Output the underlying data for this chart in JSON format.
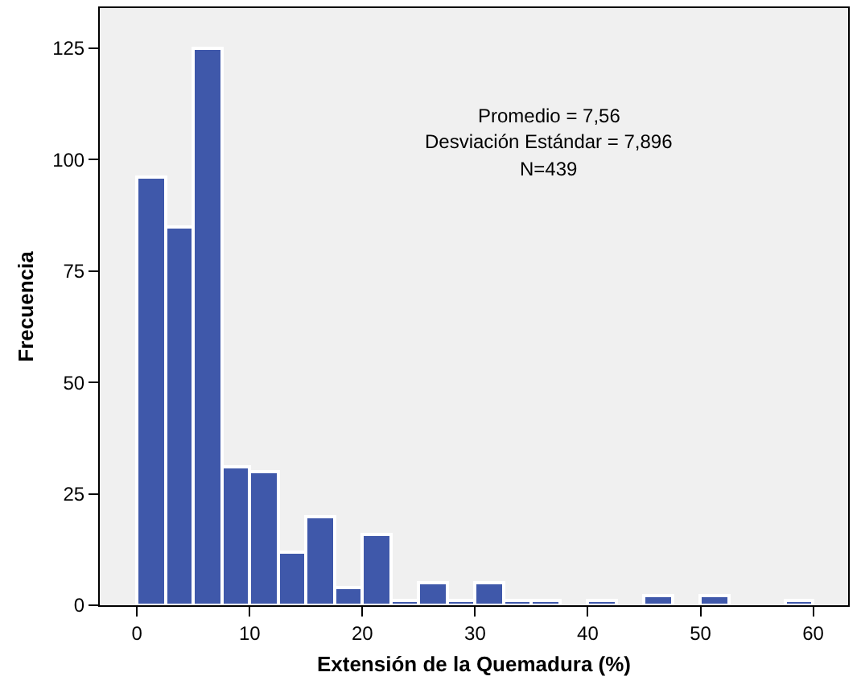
{
  "chart_data": {
    "type": "histogram",
    "xlabel": "Extensión de la Quemadura (%)",
    "ylabel": "Frecuencia",
    "bins": [
      0,
      2.5,
      5,
      7.5,
      10,
      12.5,
      15,
      17.5,
      20,
      22.5,
      25,
      27.5,
      30,
      32.5,
      35,
      37.5,
      40,
      42.5,
      45,
      47.5,
      50,
      52.5,
      55,
      57.5,
      60
    ],
    "values": [
      96,
      85,
      125,
      31,
      30,
      12,
      20,
      4,
      16,
      1,
      5,
      1,
      5,
      1,
      1,
      0,
      1,
      0,
      2,
      0,
      2,
      0,
      0,
      1
    ],
    "color": "#3f58aa",
    "xlim": [
      -3.3,
      63.1
    ],
    "xticks": [
      0,
      10,
      20,
      30,
      40,
      50,
      60
    ],
    "ylim": [
      0,
      134
    ],
    "yticks": [
      0,
      25,
      50,
      75,
      100,
      125
    ],
    "grid": false,
    "legend": false,
    "annotations": [
      "Promedio = 7,56",
      "Desviación Estándar = 7,896",
      "N=439"
    ]
  }
}
